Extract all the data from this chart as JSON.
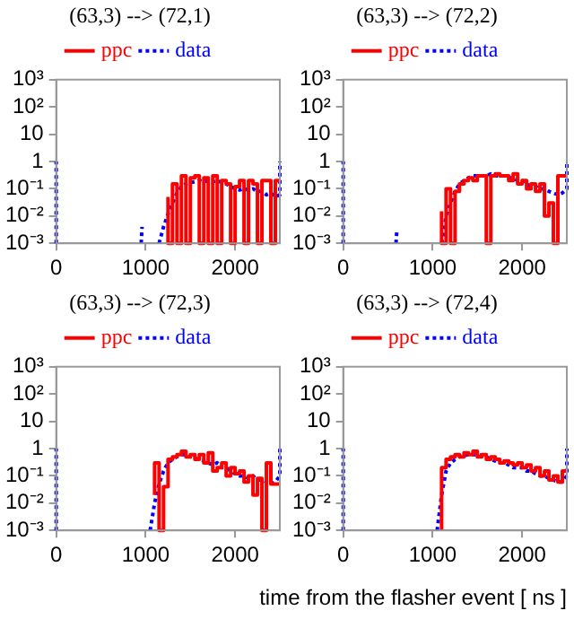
{
  "chart_data": [
    {
      "type": "line",
      "title": "(63,3) --> (72,1)",
      "log": "y",
      "legend": "top",
      "marker": "none",
      "xlim": [
        0,
        2500
      ],
      "xticks": [
        0,
        1000,
        2000
      ],
      "ylim": [
        0.001,
        1000
      ],
      "yticks": [
        {
          "value": 1000,
          "label": "10³"
        },
        {
          "value": 100,
          "label": "10²"
        },
        {
          "value": 10,
          "label": "10"
        },
        {
          "value": 1,
          "label": "1"
        },
        {
          "value": 0.1,
          "label": "10⁻¹"
        },
        {
          "value": 0.01,
          "label": "10⁻²"
        },
        {
          "value": 0.001,
          "label": "10⁻³"
        }
      ],
      "series": [
        {
          "name": "ppc",
          "type": "step",
          "color": "#ff0000",
          "line_style": "solid",
          "x": [
            1250,
            1300,
            1350,
            1400,
            1450,
            1500,
            1550,
            1600,
            1650,
            1700,
            1750,
            1800,
            1850,
            1900,
            1950,
            2000,
            2050,
            2100,
            2150,
            2200,
            2250,
            2300,
            2350,
            2400,
            2450,
            2500
          ],
          "values": [
            0.05,
            0.001,
            0.15,
            0.001,
            0.3,
            0.001,
            0.25,
            0.3,
            0.001,
            0.25,
            0.001,
            0.3,
            0.001,
            0.2,
            0.15,
            0.001,
            0.12,
            0.2,
            0.001,
            0.2,
            0.15,
            0.001,
            0.2,
            0.2,
            0.001,
            0.2
          ]
        },
        {
          "name": "data",
          "type": "line",
          "color": "#0000ff",
          "line_style": "dotted",
          "x": [
            0,
            0,
            50,
            950,
            960,
            1000,
            1150,
            1200,
            1250,
            1300,
            1350,
            1400,
            1450,
            1500,
            1550,
            1600,
            1650,
            1700,
            1750,
            1800,
            1850,
            1900,
            1950,
            2000,
            2050,
            2100,
            2150,
            2200,
            2250,
            2300,
            2350,
            2400,
            2450,
            2500,
            2500
          ],
          "values": [
            0.001,
            1,
            null,
            0.001,
            0.004,
            null,
            0.001,
            0.004,
            0.012,
            0.03,
            0.07,
            0.12,
            0.15,
            0.17,
            0.18,
            0.2,
            0.18,
            0.2,
            0.18,
            0.2,
            0.17,
            0.15,
            0.12,
            0.1,
            0.09,
            0.1,
            0.09,
            0.1,
            0.08,
            0.08,
            0.06,
            0.07,
            0.05,
            0.06,
            1
          ]
        }
      ]
    },
    {
      "type": "line",
      "title": "(63,3) --> (72,2)",
      "log": "y",
      "legend": "top",
      "marker": "none",
      "xlim": [
        0,
        2500
      ],
      "xticks": [
        0,
        1000,
        2000
      ],
      "ylim": [
        0.001,
        1000
      ],
      "yticks": [
        {
          "value": 1000,
          "label": "10³"
        },
        {
          "value": 100,
          "label": "10²"
        },
        {
          "value": 10,
          "label": "10"
        },
        {
          "value": 1,
          "label": "1"
        },
        {
          "value": 0.1,
          "label": "10⁻¹"
        },
        {
          "value": 0.01,
          "label": "10⁻²"
        },
        {
          "value": 0.001,
          "label": "10⁻³"
        }
      ],
      "series": [
        {
          "name": "ppc",
          "type": "step",
          "color": "#ff0000",
          "line_style": "solid",
          "x": [
            1100,
            1150,
            1200,
            1250,
            1300,
            1350,
            1400,
            1450,
            1500,
            1550,
            1600,
            1650,
            1700,
            1750,
            1800,
            1850,
            1900,
            1950,
            2000,
            2050,
            2100,
            2150,
            2200,
            2250,
            2300,
            2350,
            2400,
            2450,
            2500
          ],
          "values": [
            0.015,
            0.001,
            0.1,
            0.001,
            0.08,
            0.15,
            0.2,
            0.25,
            0.2,
            0.3,
            0.3,
            0.001,
            0.3,
            0.35,
            0.3,
            0.3,
            0.2,
            0.35,
            0.15,
            0.2,
            0.1,
            0.15,
            0.08,
            0.15,
            0.01,
            0.03,
            0.001,
            0.3,
            0.3
          ]
        },
        {
          "name": "data",
          "type": "line",
          "color": "#0000ff",
          "line_style": "dotted",
          "x": [
            0,
            0,
            50,
            590,
            600,
            650,
            1100,
            1150,
            1200,
            1250,
            1300,
            1350,
            1400,
            1450,
            1500,
            1550,
            1600,
            1650,
            1700,
            1750,
            1800,
            1850,
            1900,
            1950,
            2000,
            2050,
            2100,
            2150,
            2200,
            2250,
            2300,
            2350,
            2400,
            2450,
            2500,
            2500
          ],
          "values": [
            0.001,
            1,
            null,
            0.001,
            0.003,
            null,
            0.001,
            0.01,
            0.03,
            0.08,
            0.15,
            0.2,
            0.25,
            0.3,
            0.3,
            0.3,
            0.3,
            0.35,
            0.3,
            0.3,
            0.3,
            0.25,
            0.25,
            0.2,
            0.2,
            0.15,
            0.12,
            0.12,
            0.1,
            0.1,
            0.08,
            0.07,
            0.06,
            0.07,
            0.1,
            1
          ]
        }
      ]
    },
    {
      "type": "line",
      "title": "(63,3) --> (72,3)",
      "log": "y",
      "legend": "top",
      "marker": "none",
      "xlim": [
        0,
        2500
      ],
      "xticks": [
        0,
        1000,
        2000
      ],
      "ylim": [
        0.001,
        1000
      ],
      "yticks": [
        {
          "value": 1000,
          "label": "10³"
        },
        {
          "value": 100,
          "label": "10²"
        },
        {
          "value": 10,
          "label": "10"
        },
        {
          "value": 1,
          "label": "1"
        },
        {
          "value": 0.1,
          "label": "10⁻¹"
        },
        {
          "value": 0.01,
          "label": "10⁻²"
        },
        {
          "value": 0.001,
          "label": "10⁻³"
        }
      ],
      "series": [
        {
          "name": "ppc",
          "type": "step",
          "color": "#ff0000",
          "line_style": "solid",
          "x": [
            1100,
            1150,
            1200,
            1250,
            1300,
            1350,
            1400,
            1450,
            1500,
            1550,
            1600,
            1650,
            1700,
            1750,
            1800,
            1850,
            1900,
            1950,
            2000,
            2050,
            2100,
            2150,
            2200,
            2250,
            2300,
            2350,
            2400,
            2450,
            2500
          ],
          "values": [
            0.02,
            0.3,
            0.001,
            0.04,
            0.4,
            0.5,
            0.6,
            0.8,
            0.5,
            0.6,
            0.4,
            0.6,
            0.3,
            0.7,
            0.15,
            0.2,
            0.3,
            0.1,
            0.2,
            0.12,
            0.15,
            0.06,
            0.1,
            0.02,
            0.08,
            0.001,
            0.3,
            0.05,
            0.05
          ]
        },
        {
          "name": "data",
          "type": "line",
          "color": "#0000ff",
          "line_style": "dotted",
          "x": [
            0,
            0,
            50,
            1050,
            1100,
            1150,
            1200,
            1250,
            1300,
            1350,
            1400,
            1450,
            1500,
            1550,
            1600,
            1650,
            1700,
            1750,
            1800,
            1850,
            1900,
            1950,
            2000,
            2050,
            2100,
            2150,
            2200,
            2250,
            2300,
            2350,
            2400,
            2450,
            2500,
            2500
          ],
          "values": [
            0.001,
            1,
            null,
            0.001,
            0.01,
            0.05,
            0.15,
            0.3,
            0.4,
            0.5,
            0.6,
            0.6,
            0.5,
            0.45,
            0.4,
            0.35,
            0.3,
            0.25,
            0.3,
            0.2,
            0.2,
            0.15,
            0.12,
            0.1,
            0.1,
            0.08,
            0.1,
            0.07,
            0.07,
            0.06,
            0.05,
            0.06,
            0.1,
            1
          ]
        }
      ]
    },
    {
      "type": "line",
      "title": "(63,3) --> (72,4)",
      "xlabel": "time from the flasher event [ ns ]",
      "log": "y",
      "legend": "top",
      "marker": "none",
      "xlim": [
        0,
        2500
      ],
      "xticks": [
        0,
        1000,
        2000
      ],
      "ylim": [
        0.001,
        1000
      ],
      "yticks": [
        {
          "value": 1000,
          "label": "10³"
        },
        {
          "value": 100,
          "label": "10²"
        },
        {
          "value": 10,
          "label": "10"
        },
        {
          "value": 1,
          "label": "1"
        },
        {
          "value": 0.1,
          "label": "10⁻¹"
        },
        {
          "value": 0.01,
          "label": "10⁻²"
        },
        {
          "value": 0.001,
          "label": "10⁻³"
        }
      ],
      "series": [
        {
          "name": "ppc",
          "type": "step",
          "color": "#ff0000",
          "line_style": "solid",
          "x": [
            1100,
            1150,
            1200,
            1250,
            1300,
            1350,
            1400,
            1450,
            1500,
            1550,
            1600,
            1650,
            1700,
            1750,
            1800,
            1850,
            1900,
            1950,
            2000,
            2050,
            2100,
            2150,
            2200,
            2250,
            2300,
            2350,
            2400,
            2450,
            2500
          ],
          "values": [
            0.001,
            0.2,
            0.4,
            0.5,
            0.6,
            0.5,
            0.7,
            0.6,
            0.8,
            0.5,
            0.6,
            0.4,
            0.5,
            0.4,
            0.3,
            0.35,
            0.3,
            0.25,
            0.3,
            0.2,
            0.25,
            0.15,
            0.2,
            0.1,
            0.15,
            0.07,
            0.1,
            0.06,
            0.15
          ]
        },
        {
          "name": "data",
          "type": "line",
          "color": "#0000ff",
          "line_style": "dotted",
          "x": [
            0,
            0,
            50,
            1050,
            1100,
            1150,
            1200,
            1250,
            1300,
            1350,
            1400,
            1450,
            1500,
            1550,
            1600,
            1650,
            1700,
            1750,
            1800,
            1850,
            1900,
            1950,
            2000,
            2050,
            2100,
            2150,
            2200,
            2250,
            2300,
            2350,
            2400,
            2450,
            2500,
            2500
          ],
          "values": [
            0.001,
            1,
            null,
            0.001,
            0.02,
            0.15,
            0.3,
            0.4,
            0.5,
            0.55,
            0.6,
            0.6,
            0.6,
            0.55,
            0.5,
            0.4,
            0.35,
            0.3,
            0.3,
            0.25,
            0.2,
            0.2,
            0.2,
            0.15,
            0.15,
            0.12,
            0.1,
            0.1,
            0.08,
            0.07,
            0.06,
            0.06,
            0.1,
            1
          ]
        }
      ]
    }
  ]
}
